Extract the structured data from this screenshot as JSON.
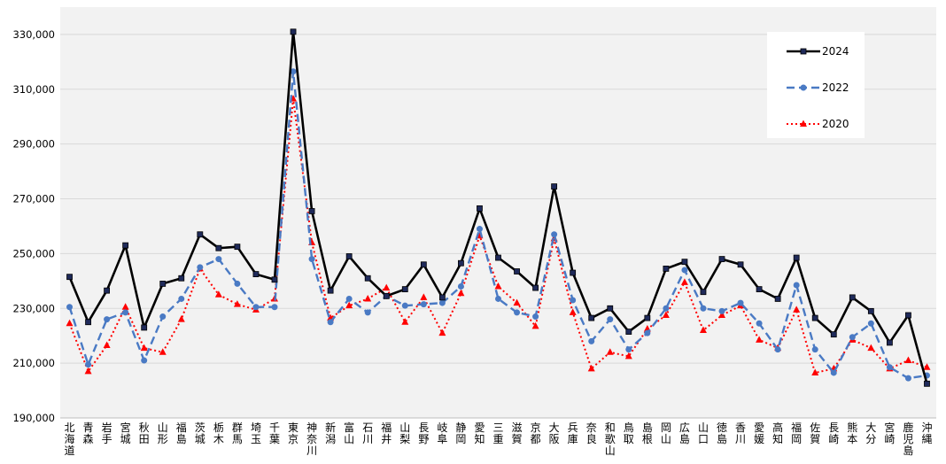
{
  "chart_data": {
    "type": "line",
    "title": "",
    "xlabel": "",
    "ylabel": "",
    "ylim": [
      190000,
      340000
    ],
    "y_ticks": [
      190000,
      210000,
      230000,
      250000,
      270000,
      290000,
      310000,
      330000
    ],
    "y_tick_labels": [
      "190,000",
      "210,000",
      "230,000",
      "250,000",
      "270,000",
      "290,000",
      "310,000",
      "330,000"
    ],
    "grid": "horizontal",
    "legend_position": "top-right",
    "categories": [
      "北海道",
      "青森",
      "岩手",
      "宮城",
      "秋田",
      "山形",
      "福島",
      "茨城",
      "栃木",
      "群馬",
      "埼玉",
      "千葉",
      "東京",
      "神奈川",
      "新潟",
      "富山",
      "石川",
      "福井",
      "山梨",
      "長野",
      "岐阜",
      "静岡",
      "愛知",
      "三重",
      "滋賀",
      "京都",
      "大阪",
      "兵庫",
      "奈良",
      "和歌山",
      "鳥取",
      "島根",
      "岡山",
      "広島",
      "山口",
      "徳島",
      "香川",
      "愛媛",
      "高知",
      "福岡",
      "佐賀",
      "長崎",
      "熊本",
      "大分",
      "宮崎",
      "鹿児島",
      "沖縄"
    ],
    "series": [
      {
        "name": "2024",
        "color": "#000000",
        "style": "solid",
        "marker": "square",
        "values": [
          241500,
          225000,
          236500,
          253000,
          223000,
          239000,
          241000,
          257000,
          252000,
          252500,
          242500,
          240500,
          331000,
          265500,
          236500,
          249000,
          241000,
          234500,
          237000,
          246000,
          234000,
          246500,
          266500,
          248500,
          243500,
          237500,
          274500,
          243000,
          226500,
          230000,
          221500,
          226500,
          244500,
          247000,
          236000,
          248000,
          246000,
          237000,
          233500,
          248500,
          226500,
          220500,
          234000,
          229000,
          217500,
          227500,
          202500
        ]
      },
      {
        "name": "2022",
        "color": "#4a7ac4",
        "style": "dashed",
        "marker": "circle",
        "values": [
          230500,
          209500,
          226000,
          228500,
          211000,
          227000,
          233500,
          245000,
          248000,
          239000,
          230500,
          230500,
          316500,
          248000,
          225000,
          233500,
          228500,
          234500,
          231000,
          231500,
          232000,
          238000,
          259000,
          233500,
          228500,
          227000,
          257000,
          233000,
          218000,
          226000,
          215000,
          221000,
          230000,
          244000,
          230000,
          229000,
          232000,
          224500,
          215000,
          238500,
          215000,
          206500,
          219500,
          224500,
          208500,
          204500,
          205500
        ]
      },
      {
        "name": "2020",
        "color": "#ff0000",
        "style": "dotted",
        "marker": "triangle",
        "values": [
          224500,
          207000,
          216500,
          230500,
          215500,
          214000,
          226000,
          244500,
          235000,
          231500,
          229500,
          233500,
          306500,
          254000,
          226500,
          231000,
          233500,
          237500,
          225000,
          234000,
          221000,
          235500,
          256500,
          238000,
          232000,
          223500,
          255500,
          228500,
          208000,
          214000,
          212500,
          222500,
          227500,
          239500,
          222000,
          227500,
          231000,
          218500,
          215500,
          229500,
          206500,
          208000,
          218500,
          215500,
          208000,
          211000,
          208500
        ]
      }
    ]
  }
}
